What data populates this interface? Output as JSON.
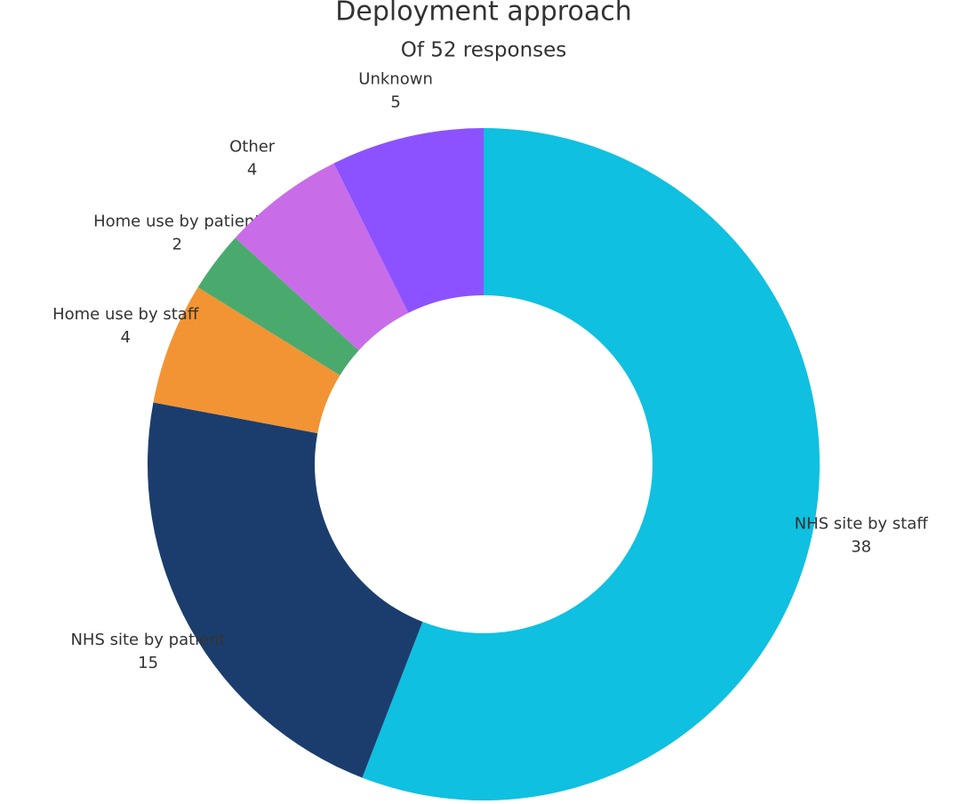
{
  "chart_data": {
    "type": "donut",
    "title": "Deployment approach",
    "subtitle": "Of 52 responses",
    "categories": [
      "NHS site by staff",
      "NHS site by patient",
      "Home use by staff",
      "Home use by patient",
      "Other",
      "Unknown"
    ],
    "values": [
      38,
      15,
      4,
      2,
      4,
      5
    ],
    "colors": [
      "#0fc0e0",
      "#1b3d6e",
      "#f29433",
      "#4aaa6e",
      "#c96ce8",
      "#8c52ff"
    ]
  }
}
